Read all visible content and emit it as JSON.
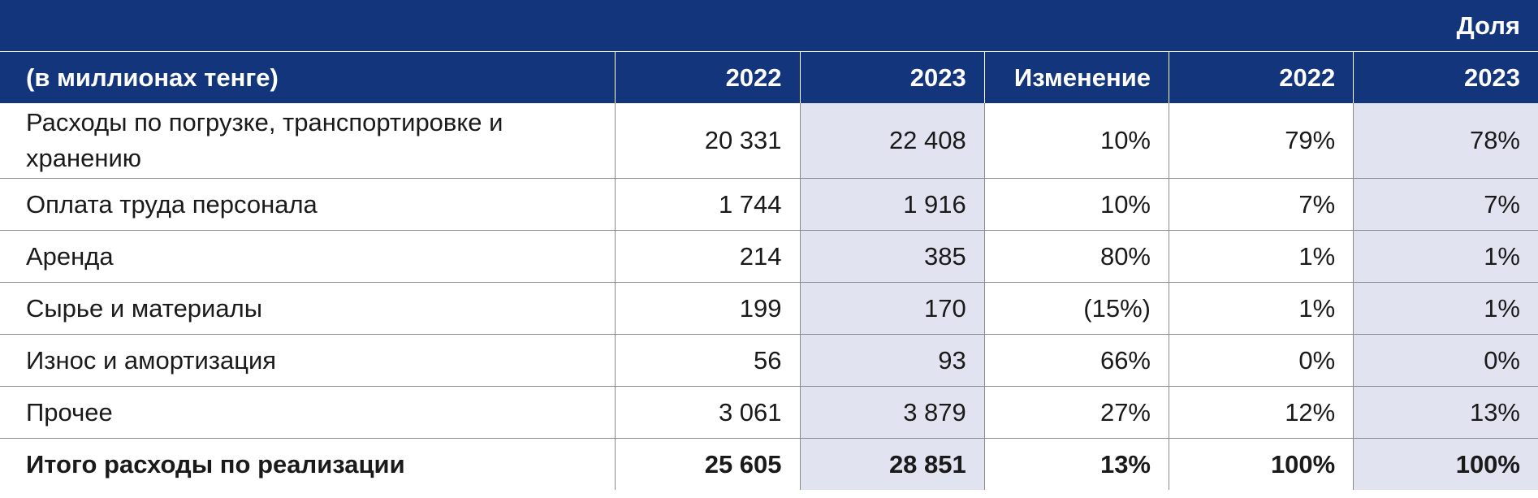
{
  "table": {
    "group_header": "Доля",
    "columns": [
      "(в миллионах тенге)",
      "2022",
      "2023",
      "Изменение",
      "2022",
      "2023"
    ],
    "rows": [
      {
        "label": "Расходы по погрузке, транспортировке и хранению",
        "v2022": "20 331",
        "v2023": "22 408",
        "change": "10%",
        "s2022": "79%",
        "s2023": "78%"
      },
      {
        "label": "Оплата труда персонала",
        "v2022": "1 744",
        "v2023": "1 916",
        "change": "10%",
        "s2022": "7%",
        "s2023": "7%"
      },
      {
        "label": "Аренда",
        "v2022": "214",
        "v2023": "385",
        "change": "80%",
        "s2022": "1%",
        "s2023": "1%"
      },
      {
        "label": "Сырье и материалы",
        "v2022": "199",
        "v2023": "170",
        "change": "(15%)",
        "s2022": "1%",
        "s2023": "1%"
      },
      {
        "label": "Износ и амортизация",
        "v2022": "56",
        "v2023": "93",
        "change": "66%",
        "s2022": "0%",
        "s2023": "0%"
      },
      {
        "label": "Прочее",
        "v2022": "3 061",
        "v2023": "3 879",
        "change": "27%",
        "s2022": "12%",
        "s2023": "13%"
      }
    ],
    "total": {
      "label": "Итого расходы по реализации",
      "v2022": "25 605",
      "v2023": "28 851",
      "change": "13%",
      "s2022": "100%",
      "s2023": "100%"
    },
    "colors": {
      "header_bg": "#12357b",
      "header_text": "#ffffff",
      "shade": "#e1e3f0",
      "rule": "#8a8a8a"
    }
  }
}
